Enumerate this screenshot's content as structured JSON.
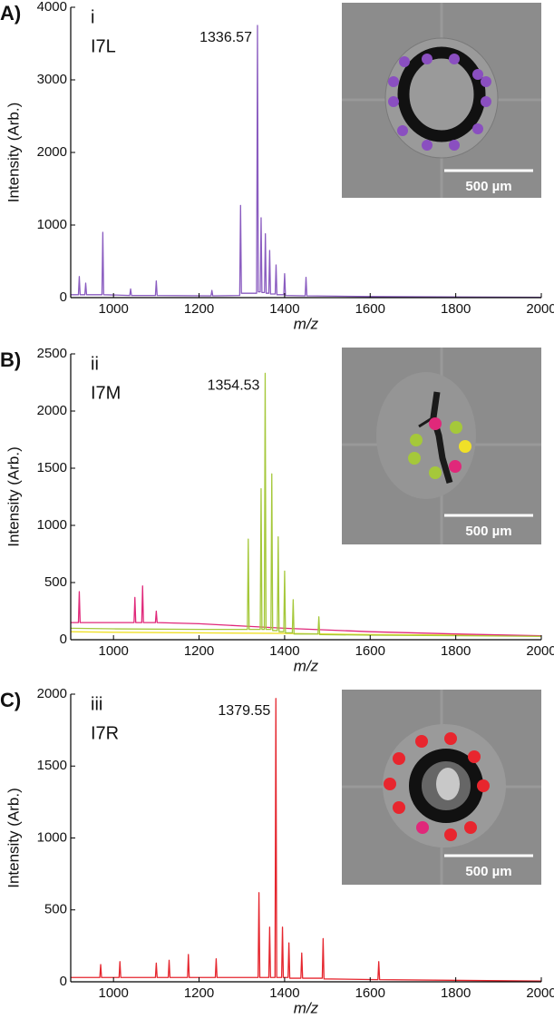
{
  "chart_data": [
    {
      "type": "line",
      "panel_label": "A)",
      "roman": "i",
      "sample": "I7L",
      "annotation": "1336.57",
      "xlabel": "m/z",
      "ylabel": "Intensity (Arb.)",
      "scale_bar": "500 µm",
      "xlim": [
        900,
        2000
      ],
      "xticks": [
        1000,
        1200,
        1400,
        1600,
        1800,
        2000
      ],
      "ylim": [
        0,
        4000
      ],
      "yticks": [
        0,
        1000,
        2000,
        3000,
        4000
      ],
      "series": [
        {
          "color": "#8a5cc0",
          "x": [
            900,
            918,
            920,
            922,
            933,
            935,
            937,
            973,
            975,
            977,
            1038,
            1040,
            1042,
            1098,
            1100,
            1102,
            1228,
            1230,
            1232,
            1295,
            1297,
            1299,
            1334.5,
            1336.57,
            1338.5,
            1343,
            1345,
            1347,
            1353,
            1355,
            1357,
            1363,
            1365,
            1367,
            1378,
            1380,
            1382,
            1398,
            1400,
            1402,
            1448,
            1450,
            1452,
            1600,
            2000
          ],
          "values": [
            40,
            40,
            290,
            40,
            40,
            200,
            40,
            40,
            900,
            40,
            30,
            120,
            30,
            30,
            230,
            30,
            25,
            100,
            25,
            30,
            1270,
            60,
            60,
            3750,
            80,
            80,
            1100,
            70,
            70,
            880,
            60,
            60,
            650,
            50,
            50,
            450,
            40,
            40,
            330,
            30,
            25,
            280,
            25,
            15,
            5
          ]
        }
      ]
    },
    {
      "type": "line",
      "panel_label": "B)",
      "roman": "ii",
      "sample": "I7M",
      "annotation": "1354.53",
      "xlabel": "m/z",
      "ylabel": "Intensity (Arb.)",
      "scale_bar": "500 µm",
      "xlim": [
        900,
        2000
      ],
      "xticks": [
        1000,
        1200,
        1400,
        1600,
        1800,
        2000
      ],
      "ylim": [
        0,
        2500
      ],
      "yticks": [
        0,
        500,
        1000,
        1500,
        2000,
        2500
      ],
      "series": [
        {
          "color": "#f0e028",
          "x": [
            900,
            1000,
            1200,
            1400,
            1600,
            1800,
            2000
          ],
          "values": [
            70,
            65,
            60,
            55,
            45,
            40,
            30
          ]
        },
        {
          "color": "#e0287a",
          "x": [
            900,
            918,
            920,
            922,
            1000,
            1048,
            1050,
            1052,
            1066,
            1068,
            1070,
            1098,
            1100,
            1102,
            1200,
            1300,
            1400,
            1600,
            1800,
            2000
          ],
          "values": [
            150,
            150,
            420,
            150,
            150,
            150,
            370,
            150,
            150,
            470,
            150,
            150,
            250,
            150,
            140,
            120,
            100,
            70,
            50,
            35
          ]
        },
        {
          "color": "#a5c83a",
          "x": [
            900,
            1000,
            1200,
            1300,
            1313,
            1315,
            1317,
            1343,
            1345,
            1347,
            1352.5,
            1354.53,
            1356.5,
            1368,
            1370,
            1372,
            1383,
            1385,
            1387,
            1398,
            1400,
            1402,
            1418,
            1420,
            1422,
            1478,
            1480,
            1482,
            1600,
            2000
          ],
          "values": [
            100,
            95,
            90,
            90,
            90,
            880,
            90,
            90,
            1320,
            90,
            90,
            2330,
            90,
            90,
            1450,
            80,
            80,
            900,
            70,
            70,
            600,
            60,
            60,
            350,
            50,
            50,
            200,
            45,
            40,
            30
          ]
        }
      ]
    },
    {
      "type": "line",
      "panel_label": "C)",
      "roman": "iii",
      "sample": "I7R",
      "annotation": "1379.55",
      "xlabel": "m/z",
      "ylabel": "Intensity (Arb.)",
      "scale_bar": "500 µm",
      "xlim": [
        900,
        2000
      ],
      "xticks": [
        1000,
        1200,
        1400,
        1600,
        1800,
        2000
      ],
      "ylim": [
        0,
        2000
      ],
      "yticks": [
        0,
        500,
        1000,
        1500,
        2000
      ],
      "series": [
        {
          "color": "#e5262e",
          "x": [
            900,
            968,
            970,
            972,
            1013,
            1015,
            1017,
            1098,
            1100,
            1102,
            1128,
            1130,
            1132,
            1173,
            1175,
            1177,
            1238,
            1240,
            1242,
            1338,
            1340,
            1342,
            1363,
            1365,
            1367,
            1377.5,
            1379.55,
            1381.5,
            1393,
            1395,
            1397,
            1408,
            1410,
            1412,
            1438,
            1440,
            1442,
            1488,
            1490,
            1492,
            1618,
            1620,
            1622,
            2000
          ],
          "values": [
            30,
            30,
            120,
            30,
            30,
            140,
            30,
            30,
            130,
            30,
            30,
            150,
            30,
            30,
            190,
            30,
            30,
            160,
            30,
            30,
            620,
            30,
            30,
            380,
            30,
            30,
            1970,
            30,
            30,
            380,
            30,
            30,
            270,
            25,
            25,
            200,
            25,
            25,
            300,
            20,
            15,
            140,
            15,
            5
          ]
        }
      ]
    }
  ]
}
